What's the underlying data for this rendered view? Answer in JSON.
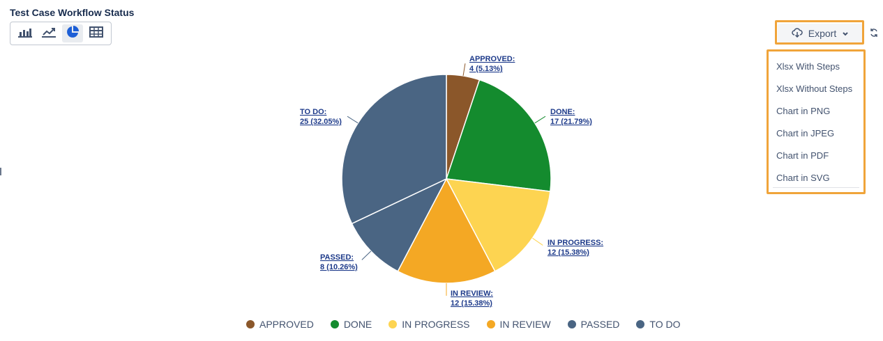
{
  "header": {
    "title": "Test Case Workflow Status"
  },
  "view_toggle": {
    "buttons": [
      {
        "icon": "bar-chart-icon",
        "active": false
      },
      {
        "icon": "line-chart-icon",
        "active": false
      },
      {
        "icon": "pie-chart-icon",
        "active": true
      },
      {
        "icon": "table-icon",
        "active": false
      }
    ]
  },
  "export": {
    "label": "Export",
    "menu": [
      "Xlsx With Steps",
      "Xlsx Without Steps",
      "Chart in PNG",
      "Chart in JPEG",
      "Chart in PDF",
      "Chart in SVG"
    ],
    "highlight_color": "#f0a43a"
  },
  "chart_data": {
    "type": "pie",
    "title": "Test Case Workflow Status",
    "legend_position": "bottom",
    "slices": [
      {
        "name": "APPROVED",
        "value": 4,
        "percent": "5.13%",
        "color": "#8b572a",
        "label_line1": "APPROVED:",
        "label_line2": "4 (5.13%)"
      },
      {
        "name": "DONE",
        "value": 17,
        "percent": "21.79%",
        "color": "#148b2e",
        "label_line1": "DONE:",
        "label_line2": "17 (21.79%)"
      },
      {
        "name": "IN PROGRESS",
        "value": 12,
        "percent": "15.38%",
        "color": "#fdd451",
        "label_line1": "IN PROGRESS:",
        "label_line2": "12 (15.38%)"
      },
      {
        "name": "IN REVIEW",
        "value": 12,
        "percent": "15.38%",
        "color": "#f4a824",
        "label_line1": "IN REVIEW:",
        "label_line2": "12 (15.38%)"
      },
      {
        "name": "PASSED",
        "value": 8,
        "percent": "10.26%",
        "color": "#4a6583",
        "label_line1": "PASSED:",
        "label_line2": "8 (10.26%)"
      },
      {
        "name": "TO DO",
        "value": 25,
        "percent": "32.05%",
        "color": "#4a6583",
        "label_line1": "TO DO:",
        "label_line2": "25 (32.05%)"
      }
    ]
  }
}
